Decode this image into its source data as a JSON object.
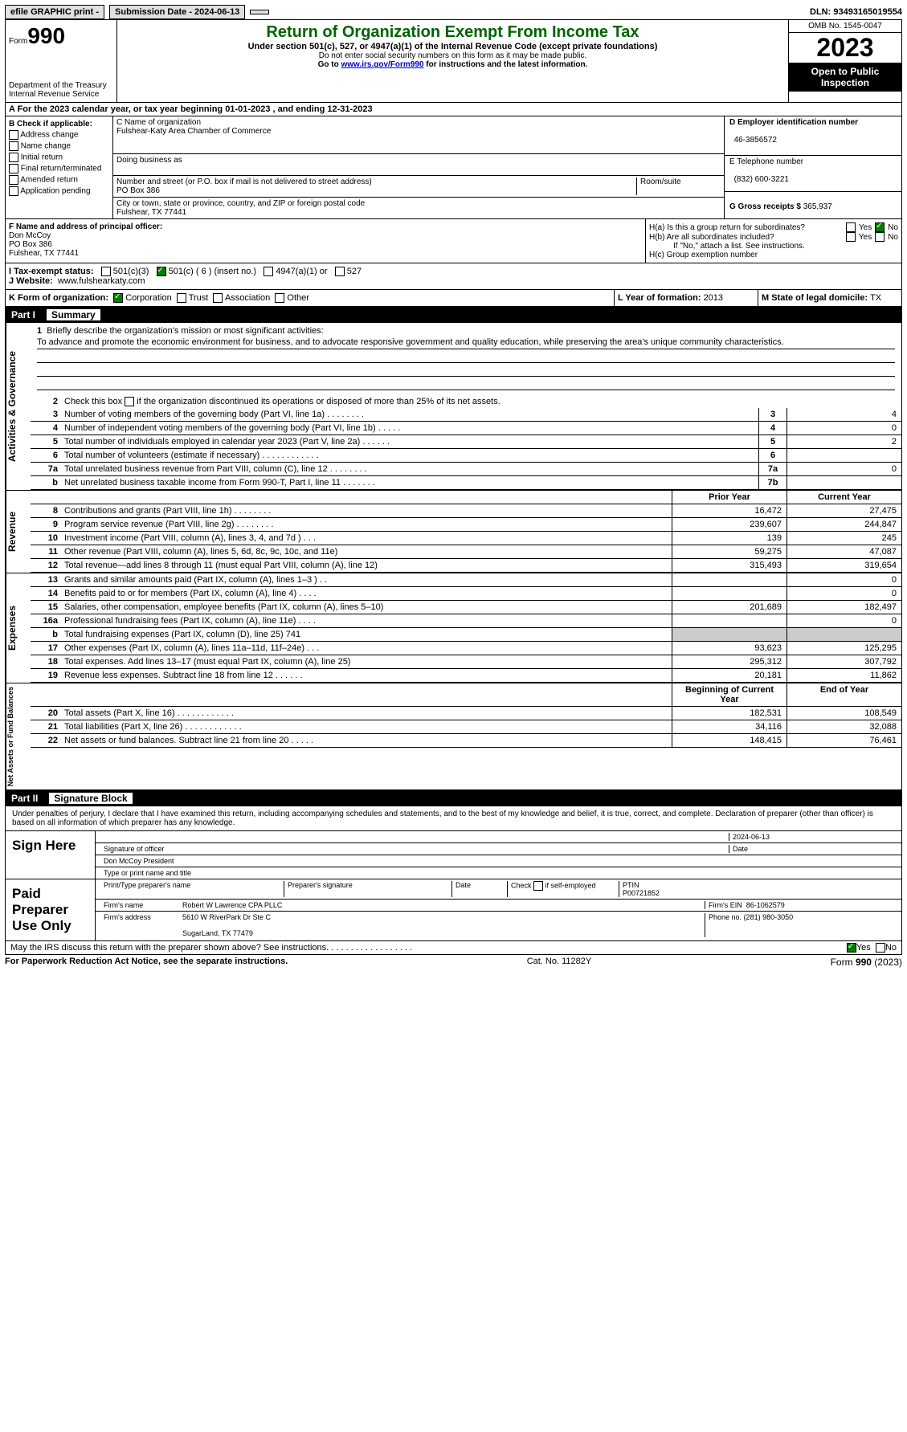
{
  "topbar": {
    "efile": "efile GRAPHIC print -",
    "submission": "Submission Date - 2024-06-13",
    "dln": "DLN: 93493165019554"
  },
  "header": {
    "form_label": "Form",
    "form_num": "990",
    "dept": "Department of the Treasury Internal Revenue Service",
    "title": "Return of Organization Exempt From Income Tax",
    "sub": "Under section 501(c), 527, or 4947(a)(1) of the Internal Revenue Code (except private foundations)",
    "ssn": "Do not enter social security numbers on this form as it may be made public.",
    "goto_pre": "Go to ",
    "goto_link": "www.irs.gov/Form990",
    "goto_post": " for instructions and the latest information.",
    "omb": "OMB No. 1545-0047",
    "year": "2023",
    "inspect": "Open to Public Inspection"
  },
  "row_a": "A For the 2023 calendar year, or tax year beginning 01-01-2023    , and ending 12-31-2023",
  "section_b": {
    "label": "B Check if applicable:",
    "opts": [
      "Address change",
      "Name change",
      "Initial return",
      "Final return/terminated",
      "Amended return",
      "Application pending"
    ],
    "c_name_label": "C Name of organization",
    "c_name": "Fulshear-Katy Area Chamber of Commerce",
    "dba_label": "Doing business as",
    "dba": "",
    "addr_label": "Number and street (or P.O. box if mail is not delivered to street address)",
    "room_label": "Room/suite",
    "addr": "PO Box 386",
    "city_label": "City or town, state or province, country, and ZIP or foreign postal code",
    "city": "Fulshear, TX  77441",
    "d_label": "D Employer identification number",
    "d_val": "46-3856572",
    "e_label": "E Telephone number",
    "e_val": "(832) 600-3221",
    "g_label": "G Gross receipts $ ",
    "g_val": "365,937"
  },
  "section_f": {
    "f_label": "F Name and address of principal officer:",
    "f_name": "Don McCoy",
    "f_addr": "PO Box 386",
    "f_city": "Fulshear, TX  77441",
    "ha_label": "H(a)  Is this a group return for subordinates?",
    "hb_label": "H(b)  Are all subordinates included?",
    "hb_note": "If \"No,\" attach a list. See instructions.",
    "hc_label": "H(c)  Group exemption number",
    "yes": "Yes",
    "no": "No"
  },
  "section_i": {
    "label": "I   Tax-exempt status:",
    "o1": "501(c)(3)",
    "o2": "501(c) ( 6 ) (insert no.)",
    "o3": "4947(a)(1) or",
    "o4": "527",
    "j_label": "J   Website:",
    "j_val": "www.fulshearkaty.com"
  },
  "section_k": {
    "k_label": "K Form of organization:",
    "k1": "Corporation",
    "k2": "Trust",
    "k3": "Association",
    "k4": "Other",
    "l_label": "L Year of formation: ",
    "l_val": "2013",
    "m_label": "M State of legal domicile: ",
    "m_val": "TX"
  },
  "part1": {
    "header": "Part I",
    "title": "Summary",
    "line1_label": "Briefly describe the organization's mission or most significant activities:",
    "mission": "To advance and promote the economic environment for business, and to advocate responsive government and quality education, while preserving the area's unique community characteristics.",
    "line2": "Check this box        if the organization discontinued its operations or disposed of more than 25% of its net assets.",
    "gov_label": "Activities & Governance",
    "rev_label": "Revenue",
    "exp_label": "Expenses",
    "net_label": "Net Assets or Fund Balances",
    "prior": "Prior Year",
    "current": "Current Year",
    "begin": "Beginning of Current Year",
    "end": "End of Year",
    "rows_gov": [
      {
        "n": "3",
        "d": "Number of voting members of the governing body (Part VI, line 1a)    .    .    .    .    .    .    .    .",
        "c": "3",
        "v": "4"
      },
      {
        "n": "4",
        "d": "Number of independent voting members of the governing body (Part VI, line 1b)    .    .    .    .    .",
        "c": "4",
        "v": "0"
      },
      {
        "n": "5",
        "d": "Total number of individuals employed in calendar year 2023 (Part V, line 2a)    .    .    .    .    .    .",
        "c": "5",
        "v": "2"
      },
      {
        "n": "6",
        "d": "Total number of volunteers (estimate if necessary)    .    .    .    .    .    .    .    .    .    .    .    .",
        "c": "6",
        "v": ""
      },
      {
        "n": "7a",
        "d": "Total unrelated business revenue from Part VIII, column (C), line 12    .    .    .    .    .    .    .    .",
        "c": "7a",
        "v": "0"
      },
      {
        "n": "b",
        "d": "Net unrelated business taxable income from Form 990-T, Part I, line 11    .    .    .    .    .    .    .",
        "c": "7b",
        "v": ""
      }
    ],
    "rows_rev": [
      {
        "n": "8",
        "d": "Contributions and grants (Part VIII, line 1h)    .    .    .    .    .    .    .    .",
        "p": "16,472",
        "c": "27,475"
      },
      {
        "n": "9",
        "d": "Program service revenue (Part VIII, line 2g)    .    .    .    .    .    .    .    .",
        "p": "239,607",
        "c": "244,847"
      },
      {
        "n": "10",
        "d": "Investment income (Part VIII, column (A), lines 3, 4, and 7d )    .    .    .",
        "p": "139",
        "c": "245"
      },
      {
        "n": "11",
        "d": "Other revenue (Part VIII, column (A), lines 5, 6d, 8c, 9c, 10c, and 11e)",
        "p": "59,275",
        "c": "47,087"
      },
      {
        "n": "12",
        "d": "Total revenue—add lines 8 through 11 (must equal Part VIII, column (A), line 12)",
        "p": "315,493",
        "c": "319,654"
      }
    ],
    "rows_exp": [
      {
        "n": "13",
        "d": "Grants and similar amounts paid (Part IX, column (A), lines 1–3 )    .    .",
        "p": "",
        "c": "0"
      },
      {
        "n": "14",
        "d": "Benefits paid to or for members (Part IX, column (A), line 4)    .    .    .    .",
        "p": "",
        "c": "0"
      },
      {
        "n": "15",
        "d": "Salaries, other compensation, employee benefits (Part IX, column (A), lines 5–10)",
        "p": "201,689",
        "c": "182,497"
      },
      {
        "n": "16a",
        "d": "Professional fundraising fees (Part IX, column (A), line 11e)    .    .    .    .",
        "p": "",
        "c": "0"
      },
      {
        "n": "b",
        "d": "Total fundraising expenses (Part IX, column (D), line 25) 741",
        "p": "GRAY",
        "c": "GRAY"
      },
      {
        "n": "17",
        "d": "Other expenses (Part IX, column (A), lines 11a–11d, 11f–24e)    .    .    .",
        "p": "93,623",
        "c": "125,295"
      },
      {
        "n": "18",
        "d": "Total expenses. Add lines 13–17 (must equal Part IX, column (A), line 25)",
        "p": "295,312",
        "c": "307,792"
      },
      {
        "n": "19",
        "d": "Revenue less expenses. Subtract line 18 from line 12    .    .    .    .    .    .",
        "p": "20,181",
        "c": "11,862"
      }
    ],
    "rows_net": [
      {
        "n": "20",
        "d": "Total assets (Part X, line 16)    .    .    .    .    .    .    .    .    .    .    .    .",
        "p": "182,531",
        "c": "108,549"
      },
      {
        "n": "21",
        "d": "Total liabilities (Part X, line 26)    .    .    .    .    .    .    .    .    .    .    .    .",
        "p": "34,116",
        "c": "32,088"
      },
      {
        "n": "22",
        "d": "Net assets or fund balances. Subtract line 21 from line 20    .    .    .    .    .",
        "p": "148,415",
        "c": "76,461"
      }
    ]
  },
  "part2": {
    "header": "Part II",
    "title": "Signature Block",
    "declaration": "Under penalties of perjury, I declare that I have examined this return, including accompanying schedules and statements, and to the best of my knowledge and belief, it is true, correct, and complete. Declaration of preparer (other than officer) is based on all information of which preparer has any knowledge.",
    "sign_here": "Sign Here",
    "sig_officer": "Signature of officer",
    "officer": "Don McCoy  President",
    "type_name": "Type or print name and title",
    "date_label": "Date",
    "date_val": "2024-06-13",
    "paid": "Paid Preparer Use Only",
    "print_label": "Print/Type preparer's name",
    "prep_sig": "Preparer's signature",
    "check_self": "Check         if self-employed",
    "ptin_label": "PTIN",
    "ptin": "P00721852",
    "firm_name_label": "Firm's name",
    "firm_name": "Robert W Lawrence CPA PLLC",
    "firm_ein_label": "Firm's EIN",
    "firm_ein": "86-1062579",
    "firm_addr_label": "Firm's address",
    "firm_addr1": "5610 W RiverPark Dr Ste C",
    "firm_addr2": "SugarLand, TX  77479",
    "phone_label": "Phone no.",
    "phone": "(281) 980-3050",
    "may_irs": "May the IRS discuss this return with the preparer shown above? See instructions.    .    .    .    .    .    .    .    .    .    .    .    .    .    .    .    .    ."
  },
  "footer": {
    "left": "For Paperwork Reduction Act Notice, see the separate instructions.",
    "mid": "Cat. No. 11282Y",
    "right": "Form 990 (2023)"
  }
}
